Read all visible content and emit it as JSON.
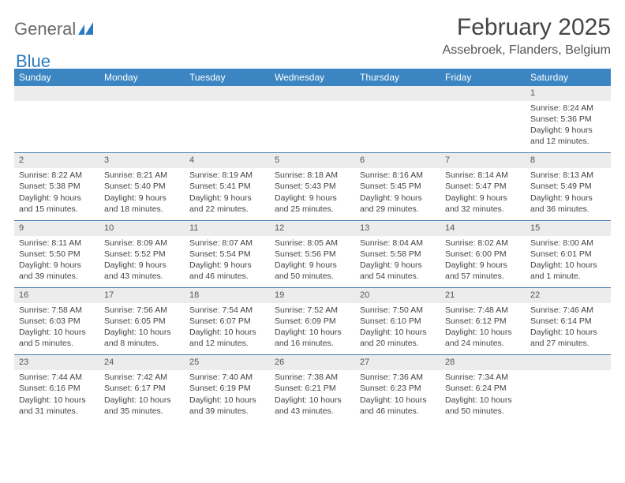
{
  "brand": {
    "word1": "General",
    "word2": "Blue",
    "logo_colors": {
      "word1": "#6a6a6a",
      "word2": "#2a7bbf",
      "mark": "#2a7bbf"
    }
  },
  "title": "February 2025",
  "location": "Assebroek, Flanders, Belgium",
  "colors": {
    "header_bg": "#3b85c2",
    "header_text": "#ffffff",
    "daynum_bg": "#ececec",
    "week_divider": "#4a7daf",
    "page_bg": "#ffffff",
    "text": "#444444"
  },
  "typography": {
    "title_fontsize_pt": 22,
    "location_fontsize_pt": 12,
    "header_fontsize_pt": 9,
    "cell_fontsize_pt": 8
  },
  "day_headers": [
    "Sunday",
    "Monday",
    "Tuesday",
    "Wednesday",
    "Thursday",
    "Friday",
    "Saturday"
  ],
  "weeks": [
    [
      {
        "n": "",
        "sunrise": "",
        "sunset": "",
        "day1": "",
        "day2": ""
      },
      {
        "n": "",
        "sunrise": "",
        "sunset": "",
        "day1": "",
        "day2": ""
      },
      {
        "n": "",
        "sunrise": "",
        "sunset": "",
        "day1": "",
        "day2": ""
      },
      {
        "n": "",
        "sunrise": "",
        "sunset": "",
        "day1": "",
        "day2": ""
      },
      {
        "n": "",
        "sunrise": "",
        "sunset": "",
        "day1": "",
        "day2": ""
      },
      {
        "n": "",
        "sunrise": "",
        "sunset": "",
        "day1": "",
        "day2": ""
      },
      {
        "n": "1",
        "sunrise": "Sunrise: 8:24 AM",
        "sunset": "Sunset: 5:36 PM",
        "day1": "Daylight: 9 hours",
        "day2": "and 12 minutes."
      }
    ],
    [
      {
        "n": "2",
        "sunrise": "Sunrise: 8:22 AM",
        "sunset": "Sunset: 5:38 PM",
        "day1": "Daylight: 9 hours",
        "day2": "and 15 minutes."
      },
      {
        "n": "3",
        "sunrise": "Sunrise: 8:21 AM",
        "sunset": "Sunset: 5:40 PM",
        "day1": "Daylight: 9 hours",
        "day2": "and 18 minutes."
      },
      {
        "n": "4",
        "sunrise": "Sunrise: 8:19 AM",
        "sunset": "Sunset: 5:41 PM",
        "day1": "Daylight: 9 hours",
        "day2": "and 22 minutes."
      },
      {
        "n": "5",
        "sunrise": "Sunrise: 8:18 AM",
        "sunset": "Sunset: 5:43 PM",
        "day1": "Daylight: 9 hours",
        "day2": "and 25 minutes."
      },
      {
        "n": "6",
        "sunrise": "Sunrise: 8:16 AM",
        "sunset": "Sunset: 5:45 PM",
        "day1": "Daylight: 9 hours",
        "day2": "and 29 minutes."
      },
      {
        "n": "7",
        "sunrise": "Sunrise: 8:14 AM",
        "sunset": "Sunset: 5:47 PM",
        "day1": "Daylight: 9 hours",
        "day2": "and 32 minutes."
      },
      {
        "n": "8",
        "sunrise": "Sunrise: 8:13 AM",
        "sunset": "Sunset: 5:49 PM",
        "day1": "Daylight: 9 hours",
        "day2": "and 36 minutes."
      }
    ],
    [
      {
        "n": "9",
        "sunrise": "Sunrise: 8:11 AM",
        "sunset": "Sunset: 5:50 PM",
        "day1": "Daylight: 9 hours",
        "day2": "and 39 minutes."
      },
      {
        "n": "10",
        "sunrise": "Sunrise: 8:09 AM",
        "sunset": "Sunset: 5:52 PM",
        "day1": "Daylight: 9 hours",
        "day2": "and 43 minutes."
      },
      {
        "n": "11",
        "sunrise": "Sunrise: 8:07 AM",
        "sunset": "Sunset: 5:54 PM",
        "day1": "Daylight: 9 hours",
        "day2": "and 46 minutes."
      },
      {
        "n": "12",
        "sunrise": "Sunrise: 8:05 AM",
        "sunset": "Sunset: 5:56 PM",
        "day1": "Daylight: 9 hours",
        "day2": "and 50 minutes."
      },
      {
        "n": "13",
        "sunrise": "Sunrise: 8:04 AM",
        "sunset": "Sunset: 5:58 PM",
        "day1": "Daylight: 9 hours",
        "day2": "and 54 minutes."
      },
      {
        "n": "14",
        "sunrise": "Sunrise: 8:02 AM",
        "sunset": "Sunset: 6:00 PM",
        "day1": "Daylight: 9 hours",
        "day2": "and 57 minutes."
      },
      {
        "n": "15",
        "sunrise": "Sunrise: 8:00 AM",
        "sunset": "Sunset: 6:01 PM",
        "day1": "Daylight: 10 hours",
        "day2": "and 1 minute."
      }
    ],
    [
      {
        "n": "16",
        "sunrise": "Sunrise: 7:58 AM",
        "sunset": "Sunset: 6:03 PM",
        "day1": "Daylight: 10 hours",
        "day2": "and 5 minutes."
      },
      {
        "n": "17",
        "sunrise": "Sunrise: 7:56 AM",
        "sunset": "Sunset: 6:05 PM",
        "day1": "Daylight: 10 hours",
        "day2": "and 8 minutes."
      },
      {
        "n": "18",
        "sunrise": "Sunrise: 7:54 AM",
        "sunset": "Sunset: 6:07 PM",
        "day1": "Daylight: 10 hours",
        "day2": "and 12 minutes."
      },
      {
        "n": "19",
        "sunrise": "Sunrise: 7:52 AM",
        "sunset": "Sunset: 6:09 PM",
        "day1": "Daylight: 10 hours",
        "day2": "and 16 minutes."
      },
      {
        "n": "20",
        "sunrise": "Sunrise: 7:50 AM",
        "sunset": "Sunset: 6:10 PM",
        "day1": "Daylight: 10 hours",
        "day2": "and 20 minutes."
      },
      {
        "n": "21",
        "sunrise": "Sunrise: 7:48 AM",
        "sunset": "Sunset: 6:12 PM",
        "day1": "Daylight: 10 hours",
        "day2": "and 24 minutes."
      },
      {
        "n": "22",
        "sunrise": "Sunrise: 7:46 AM",
        "sunset": "Sunset: 6:14 PM",
        "day1": "Daylight: 10 hours",
        "day2": "and 27 minutes."
      }
    ],
    [
      {
        "n": "23",
        "sunrise": "Sunrise: 7:44 AM",
        "sunset": "Sunset: 6:16 PM",
        "day1": "Daylight: 10 hours",
        "day2": "and 31 minutes."
      },
      {
        "n": "24",
        "sunrise": "Sunrise: 7:42 AM",
        "sunset": "Sunset: 6:17 PM",
        "day1": "Daylight: 10 hours",
        "day2": "and 35 minutes."
      },
      {
        "n": "25",
        "sunrise": "Sunrise: 7:40 AM",
        "sunset": "Sunset: 6:19 PM",
        "day1": "Daylight: 10 hours",
        "day2": "and 39 minutes."
      },
      {
        "n": "26",
        "sunrise": "Sunrise: 7:38 AM",
        "sunset": "Sunset: 6:21 PM",
        "day1": "Daylight: 10 hours",
        "day2": "and 43 minutes."
      },
      {
        "n": "27",
        "sunrise": "Sunrise: 7:36 AM",
        "sunset": "Sunset: 6:23 PM",
        "day1": "Daylight: 10 hours",
        "day2": "and 46 minutes."
      },
      {
        "n": "28",
        "sunrise": "Sunrise: 7:34 AM",
        "sunset": "Sunset: 6:24 PM",
        "day1": "Daylight: 10 hours",
        "day2": "and 50 minutes."
      },
      {
        "n": "",
        "sunrise": "",
        "sunset": "",
        "day1": "",
        "day2": ""
      }
    ]
  ]
}
